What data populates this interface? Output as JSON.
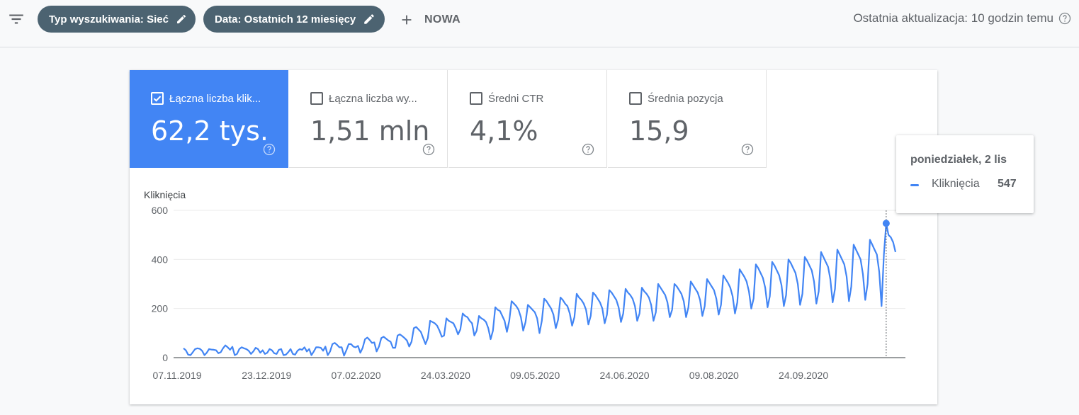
{
  "toolbar": {
    "filter_icon": "filter-list-icon",
    "chip_search_type": "Typ wyszukiwania: Sieć",
    "chip_date": "Data: Ostatnich 12 miesięcy",
    "new_label": "NOWA",
    "last_update": "Ostatnia aktualizacja: 10 godzin temu"
  },
  "metrics": [
    {
      "label": "Łączna liczba klik...",
      "value": "62,2 tys.",
      "checked": true
    },
    {
      "label": "Łączna liczba wy...",
      "value": "1,51 mln",
      "checked": false
    },
    {
      "label": "Średni CTR",
      "value": "4,1%",
      "checked": false
    },
    {
      "label": "Średnia pozycja",
      "value": "15,9",
      "checked": false
    }
  ],
  "colors": {
    "accent": "#4285f4",
    "chip": "#4c6371",
    "text": "#5f6368"
  },
  "tooltip": {
    "date": "poniedziałek, 2 lis",
    "series": "Kliknięcia",
    "value": "547"
  },
  "chart_data": {
    "type": "line",
    "ylabel": "Kliknięcia",
    "ylim": [
      0,
      600
    ],
    "yticks": [
      "600",
      "400",
      "200",
      "0"
    ],
    "xticks": [
      "07.11.2019",
      "23.12.2019",
      "07.02.2020",
      "24.03.2020",
      "09.05.2020",
      "24.06.2020",
      "09.08.2020",
      "24.09.2020"
    ],
    "grid": true,
    "series": [
      {
        "name": "Kliknięcia",
        "values": [
          38,
          30,
          12,
          10,
          22,
          35,
          38,
          36,
          28,
          10,
          20,
          35,
          33,
          32,
          30,
          18,
          22,
          38,
          50,
          42,
          32,
          44,
          10,
          15,
          35,
          42,
          38,
          35,
          28,
          15,
          25,
          40,
          35,
          20,
          30,
          15,
          20,
          35,
          30,
          18,
          15,
          32,
          35,
          10,
          12,
          22,
          35,
          15,
          12,
          28,
          35,
          32,
          42,
          25,
          35,
          10,
          25,
          42,
          42,
          40,
          28,
          45,
          10,
          25,
          55,
          60,
          52,
          42,
          42,
          8,
          30,
          55,
          55,
          45,
          42,
          48,
          20,
          40,
          75,
          82,
          72,
          60,
          62,
          25,
          45,
          80,
          85,
          78,
          70,
          65,
          40,
          40,
          90,
          95,
          88,
          80,
          70,
          45,
          65,
          120,
          125,
          115,
          105,
          80,
          55,
          80,
          150,
          145,
          140,
          130,
          110,
          85,
          90,
          160,
          150,
          145,
          140,
          120,
          95,
          115,
          180,
          170,
          165,
          150,
          140,
          90,
          110,
          170,
          160,
          155,
          145,
          120,
          75,
          110,
          205,
          195,
          190,
          170,
          150,
          105,
          150,
          230,
          220,
          210,
          195,
          165,
          110,
          145,
          215,
          205,
          195,
          185,
          160,
          100,
          150,
          240,
          230,
          215,
          200,
          175,
          120,
          155,
          245,
          235,
          220,
          210,
          180,
          130,
          165,
          260,
          245,
          235,
          220,
          195,
          135,
          170,
          265,
          255,
          240,
          225,
          200,
          140,
          175,
          275,
          265,
          250,
          235,
          205,
          145,
          180,
          280,
          265,
          255,
          240,
          210,
          150,
          180,
          285,
          270,
          260,
          245,
          215,
          150,
          185,
          300,
          285,
          270,
          255,
          225,
          165,
          195,
          300,
          290,
          275,
          260,
          230,
          165,
          205,
          310,
          295,
          280,
          265,
          235,
          170,
          210,
          320,
          305,
          290,
          275,
          240,
          175,
          215,
          335,
          320,
          305,
          285,
          250,
          180,
          225,
          360,
          345,
          330,
          310,
          270,
          200,
          240,
          380,
          365,
          345,
          325,
          285,
          205,
          250,
          390,
          375,
          355,
          335,
          295,
          210,
          255,
          400,
          385,
          365,
          345,
          300,
          215,
          260,
          410,
          395,
          375,
          355,
          310,
          220,
          270,
          430,
          410,
          390,
          370,
          320,
          225,
          280,
          440,
          420,
          400,
          380,
          330,
          230,
          290,
          460,
          440,
          420,
          400,
          340,
          235,
          300,
          480,
          460,
          440,
          420,
          350,
          210,
          420,
          547,
          500,
          490,
          470,
          430
        ]
      }
    ]
  }
}
